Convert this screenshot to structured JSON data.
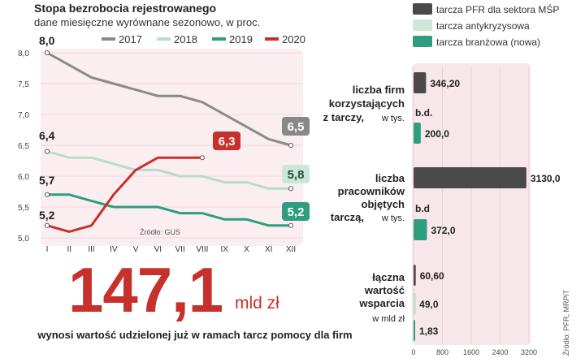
{
  "chart_data": [
    {
      "type": "line",
      "title": "Stopa bezrobocia  rejestrowanego",
      "subtitle": "dane miesięczne wyrównane sezonowo, w proc.",
      "categories": [
        "I",
        "II",
        "III",
        "IV",
        "V",
        "VI",
        "VII",
        "VIII",
        "IX",
        "X",
        "XI",
        "XII"
      ],
      "yticks": [
        "8,0",
        "7,5",
        "7,0",
        "6,5",
        "6,0",
        "5,5",
        "5,0"
      ],
      "ylim": [
        5.0,
        8.0
      ],
      "source": "Źródło: GUS",
      "series": [
        {
          "name": "2017",
          "color": "#8a8a8a",
          "values": [
            8.0,
            7.8,
            7.6,
            7.5,
            7.4,
            7.3,
            7.3,
            7.2,
            7.0,
            6.8,
            6.6,
            6.5
          ],
          "start_label": "8,0",
          "end_label": "6,5"
        },
        {
          "name": "2018",
          "color": "#b8dcc8",
          "values": [
            6.4,
            6.3,
            6.3,
            6.2,
            6.1,
            6.1,
            6.0,
            6.0,
            5.9,
            5.9,
            5.8,
            5.8
          ],
          "start_label": "6,4",
          "end_label": "5,8"
        },
        {
          "name": "2019",
          "color": "#2e9e7e",
          "values": [
            5.7,
            5.7,
            5.6,
            5.5,
            5.5,
            5.5,
            5.4,
            5.4,
            5.3,
            5.3,
            5.2,
            5.2
          ],
          "start_label": "5,7",
          "end_label": "5,2"
        },
        {
          "name": "2020",
          "color": "#c8302c",
          "values": [
            5.2,
            5.1,
            5.2,
            5.7,
            6.1,
            6.3,
            6.3,
            6.3,
            null,
            null,
            null,
            null
          ],
          "start_label": "5,2",
          "end_label": "6,3"
        }
      ]
    },
    {
      "type": "bar",
      "orientation": "horizontal",
      "legend": [
        {
          "name": "tarcza PFR dla sektora MŚP",
          "color": "#4a4a4a"
        },
        {
          "name": "tarcza antykryzysowa",
          "color": "#b8dcc8"
        },
        {
          "name": "tarcza branżowa (nowa)",
          "color": "#2e9e7e"
        }
      ],
      "xlim": [
        0,
        3200
      ],
      "xticks": [
        "0",
        "800",
        "1600",
        "2400",
        "3200"
      ],
      "source": "Źródło: PFR, MRPiT",
      "groups": [
        {
          "label_bold": [
            "liczba firm",
            "korzystających",
            "z tarczy,"
          ],
          "label_unit": "w tys.",
          "bars": [
            {
              "series": "tarcza PFR dla sektora MŚP",
              "value": 346.2,
              "label": "346,20"
            },
            {
              "series": "tarcza antykryzysowa",
              "value": null,
              "label": "b.d."
            },
            {
              "series": "tarcza branżowa (nowa)",
              "value": 200.0,
              "label": "200,0"
            }
          ]
        },
        {
          "label_bold": [
            "liczba",
            "pracowników",
            "objętych",
            "tarczą,"
          ],
          "label_unit": "w tys.",
          "bars": [
            {
              "series": "tarcza PFR dla sektora MŚP",
              "value": 3130.0,
              "label": "3130,0"
            },
            {
              "series": "tarcza antykryzysowa",
              "value": null,
              "label": "b.d"
            },
            {
              "series": "tarcza branżowa (nowa)",
              "value": 372.0,
              "label": "372,0"
            }
          ]
        },
        {
          "label_bold": [
            "łączna",
            "wartość",
            "wsparcia"
          ],
          "label_unit": "w mld zł",
          "bars": [
            {
              "series": "tarcza PFR dla sektora MŚP",
              "value": 60.6,
              "label": "60,60"
            },
            {
              "series": "tarcza antykryzysowa",
              "value": 49.0,
              "label": "49,0"
            },
            {
              "series": "tarcza branżowa (nowa)",
              "value": 1.83,
              "label": "1,83"
            }
          ]
        }
      ]
    }
  ],
  "highlight": {
    "number": "147,1",
    "unit": "mld zł",
    "caption": "wynosi wartość udzielonej już w ramach tarcz pomocy dla firm"
  }
}
